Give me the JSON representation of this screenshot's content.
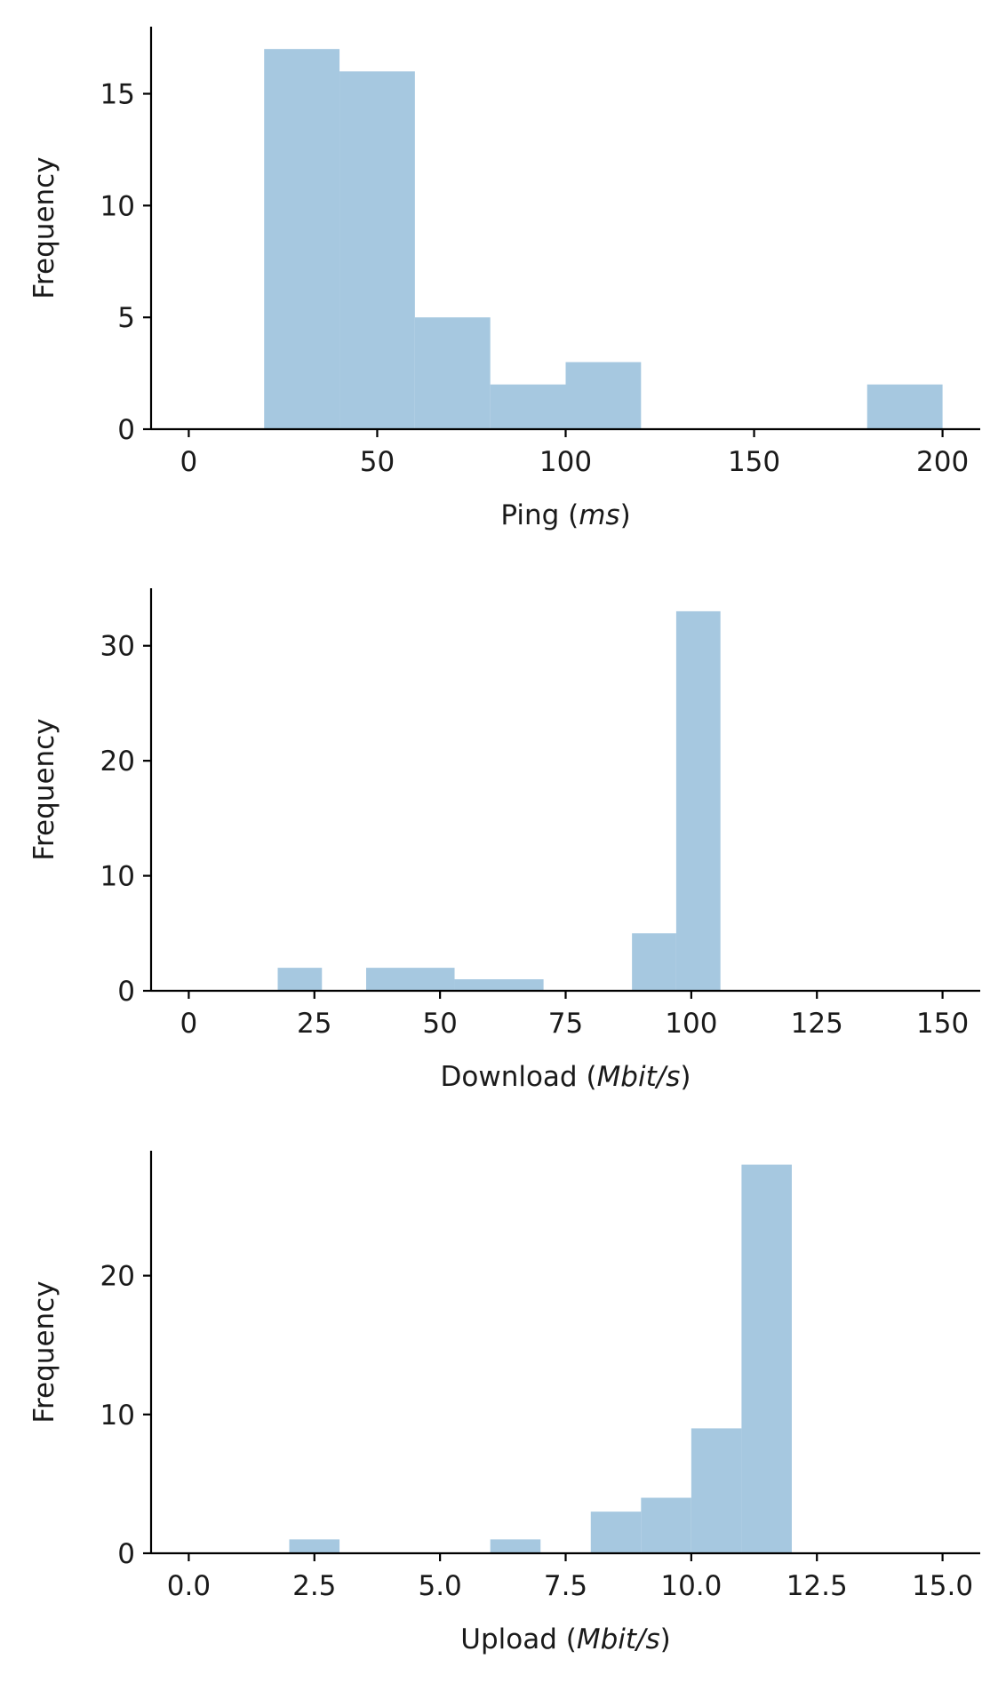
{
  "chart_data": [
    {
      "type": "histogram",
      "xlabel": "Ping",
      "xunit": "ms",
      "ylabel": "Frequency",
      "xlim": [
        -10,
        210
      ],
      "ylim": [
        0,
        18
      ],
      "xticks": [
        0,
        50,
        100,
        150,
        200
      ],
      "yticks": [
        0,
        5,
        10,
        15
      ],
      "bins": [
        {
          "start": 20,
          "end": 40,
          "count": 17
        },
        {
          "start": 40,
          "end": 60,
          "count": 16
        },
        {
          "start": 60,
          "end": 80,
          "count": 5
        },
        {
          "start": 80,
          "end": 100,
          "count": 2
        },
        {
          "start": 100,
          "end": 120,
          "count": 3
        },
        {
          "start": 180,
          "end": 200,
          "count": 2
        }
      ],
      "color": "#a6c8e0",
      "grid": false
    },
    {
      "type": "histogram",
      "xlabel": "Download",
      "xunit": "Mbit/s",
      "ylabel": "Frequency",
      "xlim": [
        -7.5,
        157.5
      ],
      "ylim": [
        0,
        35
      ],
      "xticks": [
        0,
        25,
        50,
        75,
        100,
        125,
        150
      ],
      "yticks": [
        0,
        10,
        20,
        30
      ],
      "bins": [
        {
          "start": 17.7,
          "end": 26.5,
          "count": 2
        },
        {
          "start": 35.3,
          "end": 52.9,
          "count": 2
        },
        {
          "start": 52.9,
          "end": 70.6,
          "count": 1
        },
        {
          "start": 88.2,
          "end": 97.0,
          "count": 5
        },
        {
          "start": 97.0,
          "end": 105.8,
          "count": 33
        }
      ],
      "color": "#a6c8e0",
      "grid": false
    },
    {
      "type": "histogram",
      "xlabel": "Upload",
      "xunit": "Mbit/s",
      "ylabel": "Frequency",
      "xlim": [
        -0.75,
        15.75
      ],
      "ylim": [
        0,
        29
      ],
      "xticks": [
        0.0,
        2.5,
        5.0,
        7.5,
        10.0,
        12.5,
        15.0
      ],
      "yticks": [
        0,
        10,
        20
      ],
      "bins": [
        {
          "start": 2,
          "end": 3,
          "count": 1
        },
        {
          "start": 6,
          "end": 7,
          "count": 1
        },
        {
          "start": 8,
          "end": 9,
          "count": 3
        },
        {
          "start": 9,
          "end": 10,
          "count": 4
        },
        {
          "start": 10,
          "end": 11,
          "count": 9
        },
        {
          "start": 11,
          "end": 12,
          "count": 28
        }
      ],
      "color": "#a6c8e0",
      "grid": false
    }
  ]
}
